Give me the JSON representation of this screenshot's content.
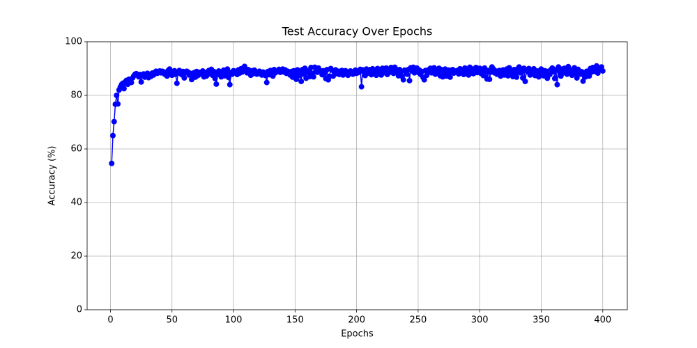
{
  "chart_data": {
    "type": "line",
    "title": "Test Accuracy Over Epochs",
    "xlabel": "Epochs",
    "ylabel": "Accuracy (%)",
    "color": "#0000ff",
    "marker": true,
    "grid": true,
    "xlim": [
      -18.95,
      419.95
    ],
    "ylim": [
      0,
      100
    ],
    "xticks": [
      0,
      50,
      100,
      150,
      200,
      250,
      300,
      350,
      400
    ],
    "yticks": [
      0,
      20,
      40,
      60,
      80,
      100
    ],
    "x": [
      1,
      2,
      3,
      4,
      5,
      6,
      7,
      8,
      9,
      10,
      11,
      12,
      13,
      14,
      15,
      16,
      17,
      18,
      19,
      20,
      21,
      22,
      23,
      24,
      25,
      26,
      27,
      28,
      29,
      30,
      31,
      32,
      33,
      34,
      35,
      36,
      37,
      38,
      39,
      40,
      41,
      42,
      43,
      44,
      45,
      46,
      47,
      48,
      49,
      50,
      51,
      52,
      53,
      54,
      55,
      56,
      57,
      58,
      59,
      60,
      61,
      62,
      63,
      64,
      65,
      66,
      67,
      68,
      69,
      70,
      71,
      72,
      73,
      74,
      75,
      76,
      77,
      78,
      79,
      80,
      81,
      82,
      83,
      84,
      85,
      86,
      87,
      88,
      89,
      90,
      91,
      92,
      93,
      94,
      95,
      96,
      97,
      98,
      99,
      100,
      101,
      102,
      103,
      104,
      105,
      106,
      107,
      108,
      109,
      110,
      111,
      112,
      113,
      114,
      115,
      116,
      117,
      118,
      119,
      120,
      121,
      122,
      123,
      124,
      125,
      126,
      127,
      128,
      129,
      130,
      131,
      132,
      133,
      134,
      135,
      136,
      137,
      138,
      139,
      140,
      141,
      142,
      143,
      144,
      145,
      146,
      147,
      148,
      149,
      150,
      151,
      152,
      153,
      154,
      155,
      156,
      157,
      158,
      159,
      160,
      161,
      162,
      163,
      164,
      165,
      166,
      167,
      168,
      169,
      170,
      171,
      172,
      173,
      174,
      175,
      176,
      177,
      178,
      179,
      180,
      181,
      182,
      183,
      184,
      185,
      186,
      187,
      188,
      189,
      190,
      191,
      192,
      193,
      194,
      195,
      196,
      197,
      198,
      199,
      200,
      201,
      202,
      203,
      204,
      205,
      206,
      207,
      208,
      209,
      210,
      211,
      212,
      213,
      214,
      215,
      216,
      217,
      218,
      219,
      220,
      221,
      222,
      223,
      224,
      225,
      226,
      227,
      228,
      229,
      230,
      231,
      232,
      233,
      234,
      235,
      236,
      237,
      238,
      239,
      240,
      241,
      242,
      243,
      244,
      245,
      246,
      247,
      248,
      249,
      250,
      251,
      252,
      253,
      254,
      255,
      256,
      257,
      258,
      259,
      260,
      261,
      262,
      263,
      264,
      265,
      266,
      267,
      268,
      269,
      270,
      271,
      272,
      273,
      274,
      275,
      276,
      277,
      278,
      279,
      280,
      281,
      282,
      283,
      284,
      285,
      286,
      287,
      288,
      289,
      290,
      291,
      292,
      293,
      294,
      295,
      296,
      297,
      298,
      299,
      300,
      301,
      302,
      303,
      304,
      305,
      306,
      307,
      308,
      309,
      310,
      311,
      312,
      313,
      314,
      315,
      316,
      317,
      318,
      319,
      320,
      321,
      322,
      323,
      324,
      325,
      326,
      327,
      328,
      329,
      330,
      331,
      332,
      333,
      334,
      335,
      336,
      337,
      338,
      339,
      340,
      341,
      342,
      343,
      344,
      345,
      346,
      347,
      348,
      349,
      350,
      351,
      352,
      353,
      354,
      355,
      356,
      357,
      358,
      359,
      360,
      361,
      362,
      363,
      364,
      365,
      366,
      367,
      368,
      369,
      370,
      371,
      372,
      373,
      374,
      375,
      376,
      377,
      378,
      379,
      380,
      381,
      382,
      383,
      384,
      385,
      386,
      387,
      388,
      389,
      390,
      391,
      392,
      393,
      394,
      395,
      396,
      397,
      398,
      399,
      400
    ],
    "values": [
      54.6,
      65.0,
      70.2,
      76.7,
      80.0,
      76.8,
      82.0,
      83.1,
      84.0,
      84.5,
      82.5,
      85.0,
      85.6,
      84.1,
      86.0,
      85.2,
      84.8,
      86.5,
      87.3,
      87.9,
      88.1,
      87.6,
      86.9,
      87.8,
      85.0,
      87.5,
      88.0,
      86.8,
      87.4,
      88.2,
      86.6,
      87.9,
      87.1,
      88.3,
      87.6,
      88.5,
      89.0,
      88.2,
      88.7,
      89.1,
      88.4,
      89.0,
      88.8,
      87.9,
      88.6,
      87.2,
      89.3,
      89.8,
      88.0,
      87.5,
      88.9,
      89.2,
      87.8,
      84.5,
      88.6,
      89.3,
      88.1,
      87.7,
      88.9,
      86.5,
      88.4,
      89.0,
      88.7,
      87.6,
      88.2,
      85.9,
      87.8,
      88.5,
      86.8,
      88.9,
      87.4,
      88.6,
      87.9,
      88.3,
      89.1,
      86.9,
      88.4,
      87.2,
      88.8,
      89.3,
      88.0,
      89.7,
      87.5,
      88.9,
      86.3,
      84.2,
      87.8,
      89.1,
      88.4,
      86.9,
      88.6,
      89.4,
      87.3,
      88.1,
      89.8,
      86.7,
      84.0,
      88.5,
      87.9,
      89.2,
      88.6,
      89.0,
      87.8,
      89.5,
      88.3,
      89.9,
      88.7,
      90.3,
      90.8,
      89.1,
      88.4,
      89.6,
      88.9,
      87.5,
      89.2,
      88.1,
      89.4,
      88.8,
      87.9,
      88.5,
      89.0,
      88.2,
      87.6,
      88.7,
      88.1,
      87.4,
      84.8,
      88.9,
      87.7,
      89.3,
      88.5,
      87.2,
      89.6,
      88.4,
      88.9,
      89.1,
      89.7,
      88.6,
      89.4,
      89.8,
      88.7,
      89.5,
      88.2,
      89.0,
      88.4,
      87.6,
      88.9,
      86.8,
      89.2,
      88.1,
      86.0,
      89.5,
      87.3,
      88.8,
      85.2,
      89.6,
      87.9,
      90.1,
      86.4,
      88.7,
      89.3,
      87.0,
      90.4,
      88.2,
      86.9,
      90.5,
      89.1,
      88.6,
      90.2,
      89.4,
      88.9,
      87.7,
      89.2,
      88.5,
      86.3,
      89.6,
      85.8,
      87.1,
      90.0,
      89.4,
      87.2,
      88.6,
      89.5,
      88.1,
      89.0,
      87.8,
      88.4,
      89.3,
      87.6,
      88.9,
      89.2,
      88.0,
      87.5,
      88.7,
      89.1,
      88.3,
      87.9,
      88.8,
      89.4,
      88.2,
      89.0,
      88.6,
      89.7,
      83.2,
      89.5,
      88.9,
      87.4,
      89.8,
      89.1,
      88.3,
      89.6,
      87.7,
      89.9,
      88.8,
      89.2,
      87.5,
      90.0,
      88.9,
      89.4,
      87.6,
      90.1,
      88.4,
      89.7,
      90.2,
      87.8,
      89.3,
      88.6,
      90.4,
      89.0,
      88.2,
      90.5,
      89.8,
      88.5,
      87.3,
      89.6,
      88.9,
      87.1,
      85.8,
      89.4,
      88.7,
      87.9,
      89.6,
      85.5,
      90.3,
      89.1,
      90.5,
      88.4,
      89.9,
      90.2,
      88.6,
      89.4,
      87.8,
      88.9,
      86.7,
      85.8,
      89.3,
      87.5,
      88.8,
      89.7,
      90.1,
      88.4,
      89.5,
      90.3,
      87.9,
      89.0,
      88.2,
      90.1,
      87.3,
      89.6,
      86.9,
      88.7,
      89.8,
      87.2,
      88.5,
      89.4,
      86.8,
      88.9,
      89.6,
      88.3,
      89.1,
      88.7,
      89.3,
      88.0,
      89.9,
      88.6,
      89.5,
      87.8,
      90.2,
      88.9,
      89.4,
      87.6,
      90.5,
      88.3,
      89.8,
      88.1,
      89.0,
      90.4,
      88.5,
      89.7,
      90.1,
      88.2,
      89.6,
      87.4,
      90.2,
      88.8,
      86.1,
      89.3,
      86.0,
      88.7,
      90.6,
      89.9,
      88.4,
      89.1,
      87.9,
      88.6,
      89.3,
      87.2,
      88.8,
      89.5,
      87.6,
      88.9,
      89.8,
      87.3,
      90.3,
      88.5,
      89.2,
      87.0,
      89.6,
      88.1,
      86.8,
      89.9,
      90.6,
      88.4,
      89.7,
      86.5,
      90.1,
      85.2,
      89.3,
      88.8,
      90.0,
      87.6,
      89.4,
      88.2,
      89.9,
      87.4,
      88.7,
      89.1,
      86.9,
      88.5,
      89.8,
      88.0,
      87.3,
      89.2,
      88.6,
      86.4,
      89.0,
      87.8,
      89.6,
      90.2,
      88.9,
      86.3,
      89.5,
      84.0,
      90.6,
      88.7,
      87.2,
      89.8,
      88.4,
      90.1,
      89.3,
      87.9,
      90.7,
      88.6,
      89.4,
      87.5,
      89.1,
      90.3,
      88.2,
      86.5,
      89.7,
      88.4,
      87.9,
      88.8,
      85.3,
      88.1,
      86.9,
      89.0,
      88.5,
      87.2,
      90.0,
      88.7,
      90.4,
      89.6,
      88.9,
      91.0,
      88.3,
      89.7,
      90.2,
      90.6,
      89.1
    ]
  }
}
